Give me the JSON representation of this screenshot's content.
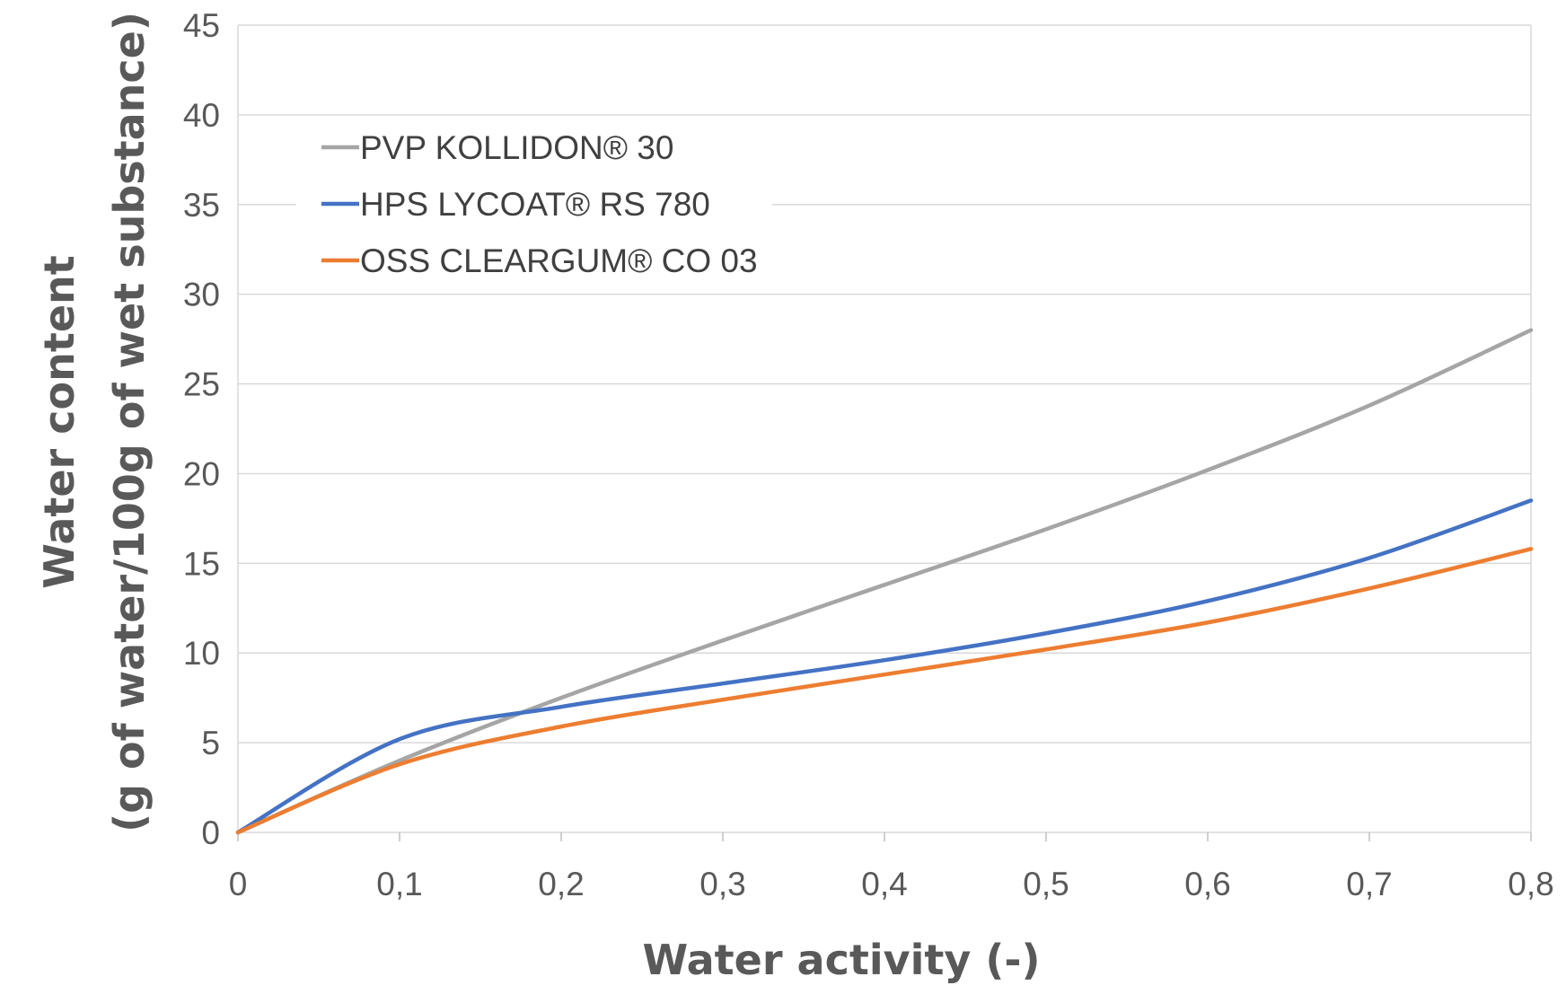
{
  "chart_data": {
    "type": "line",
    "title": "",
    "xlabel": "Water activity (-)",
    "ylabel_line1": "Water content",
    "ylabel_line2": "(g of water/100g of wet substance)",
    "xlim": [
      0,
      0.8
    ],
    "ylim": [
      0,
      45
    ],
    "x_ticks": [
      {
        "value": 0,
        "label": "0"
      },
      {
        "value": 0.1,
        "label": "0,1"
      },
      {
        "value": 0.2,
        "label": "0,2"
      },
      {
        "value": 0.3,
        "label": "0,3"
      },
      {
        "value": 0.4,
        "label": "0,4"
      },
      {
        "value": 0.5,
        "label": "0,5"
      },
      {
        "value": 0.6,
        "label": "0,6"
      },
      {
        "value": 0.7,
        "label": "0,7"
      },
      {
        "value": 0.8,
        "label": "0,8"
      }
    ],
    "y_ticks": [
      {
        "value": 0,
        "label": "0"
      },
      {
        "value": 5,
        "label": "5"
      },
      {
        "value": 10,
        "label": "10"
      },
      {
        "value": 15,
        "label": "15"
      },
      {
        "value": 20,
        "label": "20"
      },
      {
        "value": 25,
        "label": "25"
      },
      {
        "value": 30,
        "label": "30"
      },
      {
        "value": 35,
        "label": "35"
      },
      {
        "value": 40,
        "label": "40"
      },
      {
        "value": 45,
        "label": "45"
      }
    ],
    "grid": "horizontal",
    "legend_position": "top-left",
    "series": [
      {
        "name": "PVP KOLLIDON® 30",
        "color": "#a5a5a5",
        "x": [
          0,
          0.1,
          0.2,
          0.3,
          0.4,
          0.5,
          0.6,
          0.7,
          0.8
        ],
        "y": [
          0,
          4.0,
          7.5,
          10.7,
          13.8,
          16.9,
          20.2,
          23.8,
          28.0
        ]
      },
      {
        "name": "HPS LYCOAT® RS 780",
        "color": "#4472c4",
        "x": [
          0,
          0.1,
          0.2,
          0.3,
          0.4,
          0.5,
          0.6,
          0.7,
          0.8
        ],
        "y": [
          0,
          5.2,
          7.0,
          8.3,
          9.6,
          11.1,
          12.9,
          15.3,
          18.5
        ]
      },
      {
        "name": "OSS CLEARGUM® CO 03",
        "color": "#ed7d31",
        "x": [
          0,
          0.1,
          0.2,
          0.3,
          0.4,
          0.5,
          0.6,
          0.7,
          0.8
        ],
        "y": [
          0,
          3.8,
          5.9,
          7.4,
          8.8,
          10.2,
          11.7,
          13.6,
          15.8
        ]
      }
    ]
  }
}
